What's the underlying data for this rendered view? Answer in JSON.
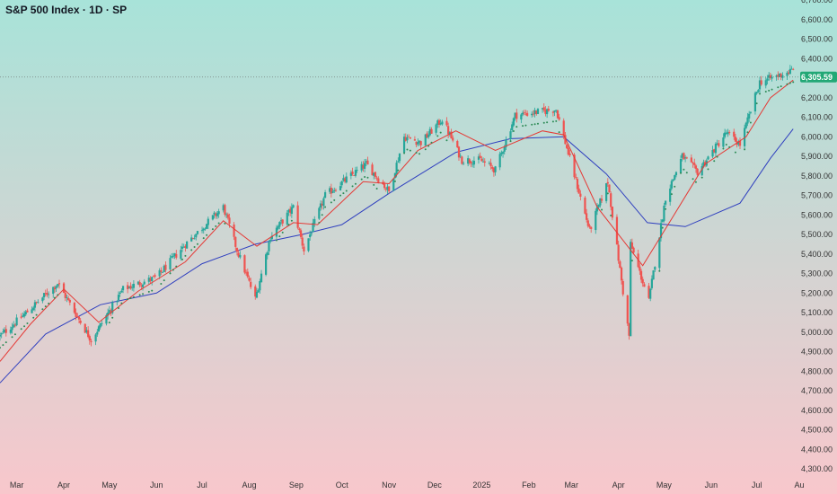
{
  "header": {
    "symbol": "S&P 500 Index",
    "timeframe": "1D",
    "exchange": "SP",
    "title": "S&P 500 Index · 1D · SP"
  },
  "colors": {
    "background_top": "#a8e3d9",
    "background_bottom": "#f8c7cc",
    "up_candle": "#26a69a",
    "down_candle": "#ef5350",
    "ma_fast": "#e53935",
    "ma_slow": "#2f3fbf",
    "dots": "#2e8b57",
    "last_price_label": "#22a876",
    "last_price_line": "#6a6a6a"
  },
  "chart_data": {
    "type": "candlestick",
    "instrument": "S&P 500 Index",
    "interval": "1D",
    "ylim": [
      4300,
      6700
    ],
    "yticks": [
      4300,
      4400,
      4500,
      4600,
      4700,
      4800,
      4900,
      5000,
      5100,
      5200,
      5300,
      5400,
      5500,
      5600,
      5700,
      5800,
      5900,
      6000,
      6100,
      6200,
      6300,
      6400,
      6500,
      6600,
      6700
    ],
    "ytick_labels": [
      "4,300.00",
      "4,400.00",
      "4,500.00",
      "4,600.00",
      "4,700.00",
      "4,800.00",
      "4,900.00",
      "5,000.00",
      "5,100.00",
      "5,200.00",
      "5,300.00",
      "5,400.00",
      "5,500.00",
      "5,600.00",
      "5,700.00",
      "5,800.00",
      "5,900.00",
      "6,000.00",
      "6,100.00",
      "6,200.00",
      "6,300.00",
      "6,400.00",
      "6,500.00",
      "6,600.00",
      "6,700.00"
    ],
    "xlim": [
      "2024-02-19",
      "2025-07-29"
    ],
    "xticks": [
      {
        "date": "2024-03-01",
        "label": "Mar"
      },
      {
        "date": "2024-04-01",
        "label": "Apr"
      },
      {
        "date": "2024-05-01",
        "label": "May"
      },
      {
        "date": "2024-06-01",
        "label": "Jun"
      },
      {
        "date": "2024-07-01",
        "label": "Jul"
      },
      {
        "date": "2024-08-01",
        "label": "Aug"
      },
      {
        "date": "2024-09-01",
        "label": "Sep"
      },
      {
        "date": "2024-10-01",
        "label": "Oct"
      },
      {
        "date": "2024-11-01",
        "label": "Nov"
      },
      {
        "date": "2024-12-01",
        "label": "Dec"
      },
      {
        "date": "2025-01-01",
        "label": "2025"
      },
      {
        "date": "2025-02-01",
        "label": "Feb"
      },
      {
        "date": "2025-03-01",
        "label": "Mar"
      },
      {
        "date": "2025-04-01",
        "label": "Apr"
      },
      {
        "date": "2025-05-01",
        "label": "May"
      },
      {
        "date": "2025-06-01",
        "label": "Jun"
      },
      {
        "date": "2025-07-01",
        "label": "Jul"
      },
      {
        "date": "2025-07-29",
        "label": "Au"
      }
    ],
    "close_path": [
      [
        "2024-02-19",
        4980
      ],
      [
        "2024-03-06",
        5090
      ],
      [
        "2024-03-28",
        5250
      ],
      [
        "2024-04-19",
        4960
      ],
      [
        "2024-05-10",
        5220
      ],
      [
        "2024-06-01",
        5280
      ],
      [
        "2024-06-20",
        5450
      ],
      [
        "2024-07-15",
        5640
      ],
      [
        "2024-07-24",
        5420
      ],
      [
        "2024-08-05",
        5170
      ],
      [
        "2024-08-15",
        5490
      ],
      [
        "2024-08-30",
        5640
      ],
      [
        "2024-09-06",
        5420
      ],
      [
        "2024-09-20",
        5700
      ],
      [
        "2024-10-17",
        5860
      ],
      [
        "2024-11-01",
        5720
      ],
      [
        "2024-11-11",
        6000
      ],
      [
        "2024-11-22",
        5970
      ],
      [
        "2024-12-06",
        6090
      ],
      [
        "2024-12-19",
        5880
      ],
      [
        "2024-12-31",
        5880
      ],
      [
        "2025-01-10",
        5830
      ],
      [
        "2025-01-23",
        6110
      ],
      [
        "2025-02-19",
        6140
      ],
      [
        "2025-03-13",
        5520
      ],
      [
        "2025-03-25",
        5770
      ],
      [
        "2025-04-08",
        4980
      ],
      [
        "2025-04-09",
        5450
      ],
      [
        "2025-04-21",
        5160
      ],
      [
        "2025-05-02",
        5690
      ],
      [
        "2025-05-13",
        5900
      ],
      [
        "2025-05-23",
        5820
      ],
      [
        "2025-06-11",
        6020
      ],
      [
        "2025-06-20",
        5960
      ],
      [
        "2025-07-03",
        6280
      ],
      [
        "2025-07-25",
        6340
      ]
    ],
    "ma_fast_path": [
      [
        "2024-02-19",
        4850
      ],
      [
        "2024-03-10",
        5040
      ],
      [
        "2024-04-01",
        5220
      ],
      [
        "2024-04-24",
        5050
      ],
      [
        "2024-05-20",
        5210
      ],
      [
        "2024-06-20",
        5360
      ],
      [
        "2024-07-15",
        5570
      ],
      [
        "2024-08-06",
        5440
      ],
      [
        "2024-08-30",
        5560
      ],
      [
        "2024-09-15",
        5550
      ],
      [
        "2024-10-15",
        5770
      ],
      [
        "2024-11-01",
        5760
      ],
      [
        "2024-11-20",
        5930
      ],
      [
        "2024-12-15",
        6030
      ],
      [
        "2025-01-10",
        5930
      ],
      [
        "2025-02-10",
        6030
      ],
      [
        "2025-02-24",
        6010
      ],
      [
        "2025-03-18",
        5640
      ],
      [
        "2025-04-17",
        5340
      ],
      [
        "2025-05-06",
        5580
      ],
      [
        "2025-05-28",
        5860
      ],
      [
        "2025-06-24",
        6000
      ],
      [
        "2025-07-10",
        6200
      ],
      [
        "2025-07-25",
        6290
      ]
    ],
    "ma_slow_path": [
      [
        "2024-02-19",
        4740
      ],
      [
        "2024-03-20",
        4990
      ],
      [
        "2024-04-25",
        5140
      ],
      [
        "2024-06-01",
        5200
      ],
      [
        "2024-07-01",
        5350
      ],
      [
        "2024-08-05",
        5450
      ],
      [
        "2024-09-05",
        5500
      ],
      [
        "2024-10-01",
        5550
      ],
      [
        "2024-11-01",
        5710
      ],
      [
        "2024-12-15",
        5920
      ],
      [
        "2025-01-20",
        5990
      ],
      [
        "2025-02-24",
        6000
      ],
      [
        "2025-03-24",
        5810
      ],
      [
        "2025-04-20",
        5560
      ],
      [
        "2025-05-15",
        5540
      ],
      [
        "2025-06-20",
        5660
      ],
      [
        "2025-07-10",
        5890
      ],
      [
        "2025-07-25",
        6040
      ]
    ],
    "last_price": 6305.59,
    "last_price_label": "6,305.59"
  }
}
